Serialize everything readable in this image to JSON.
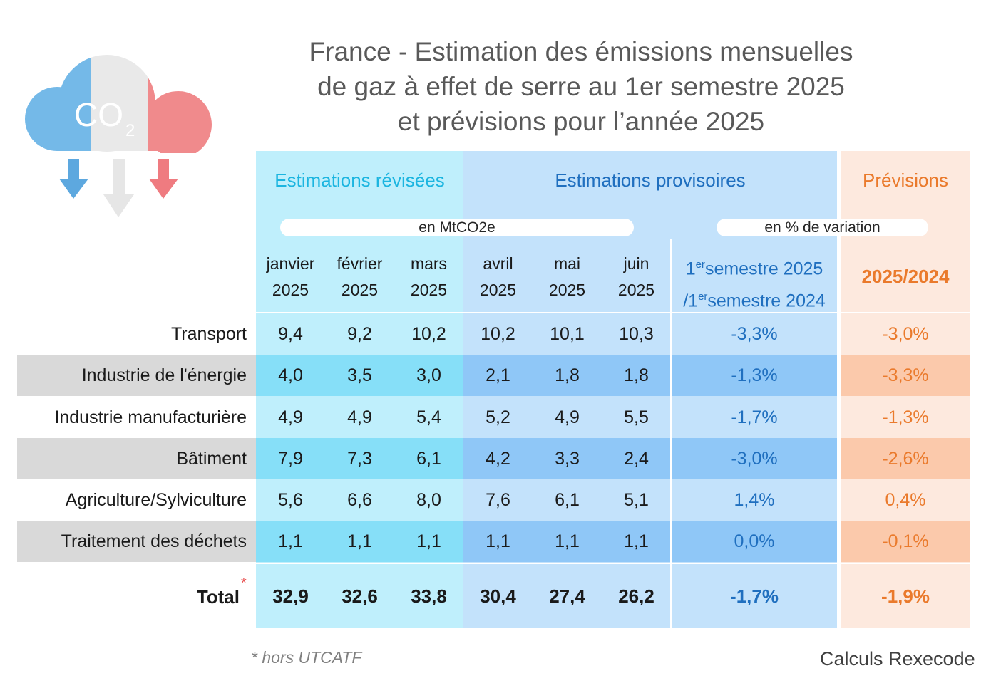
{
  "title": {
    "line1": "France - Estimation des émissions mensuelles",
    "line2": "de gaz à effet de serre au 1er semestre 2025",
    "line3": "et prévisions pour l’année 2025"
  },
  "logo": {
    "text": "CO",
    "subscript": "2",
    "colors": [
      "#74b9e8",
      "#e9e9e9",
      "#f08a8c"
    ]
  },
  "groups": {
    "revised": "Estimations révisées",
    "provisional": "Estimations provisoires",
    "forecast": "Prévisions"
  },
  "units": {
    "level": "en MtCO2e",
    "variation": "en % de variation"
  },
  "columns": {
    "months": [
      {
        "name": "janvier",
        "year": "2025"
      },
      {
        "name": "février",
        "year": "2025"
      },
      {
        "name": "mars",
        "year": "2025"
      },
      {
        "name": "avril",
        "year": "2025"
      },
      {
        "name": "mai",
        "year": "2025"
      },
      {
        "name": "juin",
        "year": "2025"
      }
    ],
    "semester": {
      "num1": "1",
      "sup1": "er",
      "text1": "semestre 2025",
      "prefix2": "/1",
      "sup2": "er",
      "text2": "semestre 2024"
    },
    "forecast": "2025/2024"
  },
  "chart_data": {
    "type": "table",
    "title": "France - Estimation des émissions mensuelles de gaz à effet de serre au 1er semestre 2025 et prévisions pour l’année 2025",
    "unit": "MtCO2e",
    "rows": [
      {
        "label": "Transport",
        "values": [
          "9,4",
          "9,2",
          "10,2",
          "10,2",
          "10,1",
          "10,3"
        ],
        "semester_change": "-3,3%",
        "forecast": "-3,0%"
      },
      {
        "label": "Industrie de l'énergie",
        "values": [
          "4,0",
          "3,5",
          "3,0",
          "2,1",
          "1,8",
          "1,8"
        ],
        "semester_change": "-1,3%",
        "forecast": "-3,3%"
      },
      {
        "label": "Industrie manufacturière",
        "values": [
          "4,9",
          "4,9",
          "5,4",
          "5,2",
          "4,9",
          "5,5"
        ],
        "semester_change": "-1,7%",
        "forecast": "-1,3%"
      },
      {
        "label": "Bâtiment",
        "values": [
          "7,9",
          "7,3",
          "6,1",
          "4,2",
          "3,3",
          "2,4"
        ],
        "semester_change": "-3,0%",
        "forecast": "-2,6%"
      },
      {
        "label": "Agriculture/Sylviculture",
        "values": [
          "5,6",
          "6,6",
          "8,0",
          "7,6",
          "6,1",
          "5,1"
        ],
        "semester_change": "1,4%",
        "forecast": "0,4%"
      },
      {
        "label": "Traitement des déchets",
        "values": [
          "1,1",
          "1,1",
          "1,1",
          "1,1",
          "1,1",
          "1,1"
        ],
        "semester_change": "0,0%",
        "forecast": "-0,1%"
      }
    ],
    "total": {
      "label": "Total",
      "marker": "*",
      "values": [
        "32,9",
        "32,6",
        "33,8",
        "30,4",
        "27,4",
        "26,2"
      ],
      "semester_change": "-1,7%",
      "forecast": "-1,9%"
    }
  },
  "footnote": "*  hors UTCATF",
  "source": "Calculs Rexecode"
}
